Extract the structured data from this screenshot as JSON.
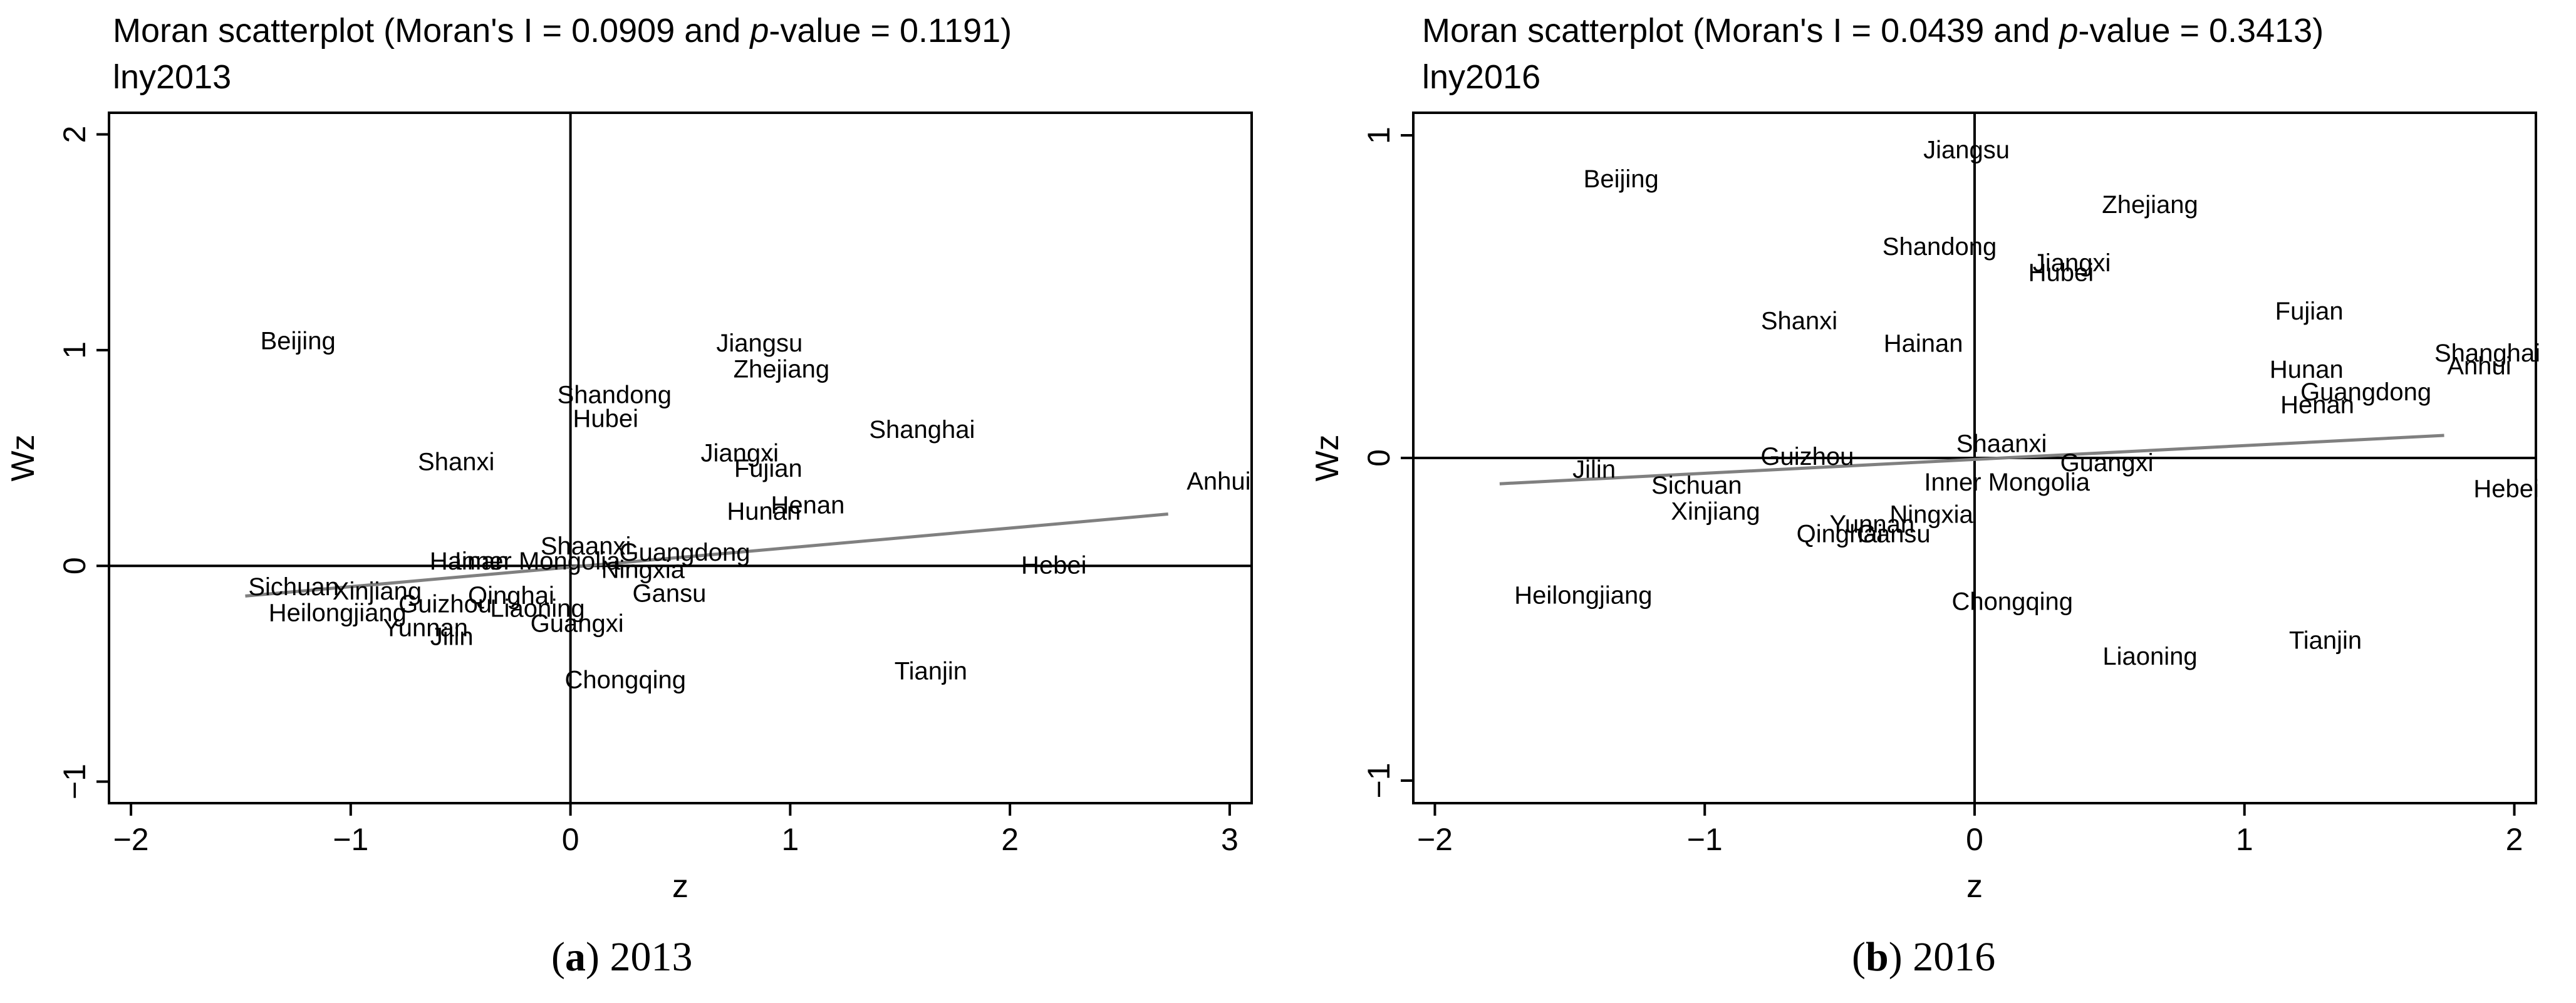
{
  "chart_data": [
    {
      "type": "scatter",
      "title": "Moran scatterplot (Moran's I = 0.0909 and p-value = 0.1191)",
      "title_parts": {
        "before": "Moran scatterplot (Moran's I = 0.0909 and ",
        "italic": "p",
        "after": "-value = 0.1191)"
      },
      "subtitle": "lny2013",
      "xlabel": "z",
      "ylabel": "Wz",
      "xlim": [
        -2.1,
        3.1
      ],
      "ylim": [
        -1.1,
        2.1
      ],
      "xticks": [
        -2,
        -1,
        0,
        1,
        2,
        3
      ],
      "yticks": [
        -1,
        0,
        1,
        2
      ],
      "xtick_labels": [
        "−2",
        "−1",
        "0",
        "1",
        "2",
        "3"
      ],
      "ytick_labels": [
        "−1",
        "0",
        "1",
        "2"
      ],
      "grid": false,
      "fit_line": {
        "x": [
          -1.48,
          2.72
        ],
        "y": [
          -0.14,
          0.24
        ]
      },
      "caption": {
        "letter": "a",
        "text": " 2013"
      },
      "points": [
        {
          "label": "Beijing",
          "x": -1.24,
          "y": 1.05
        },
        {
          "label": "Shanxi",
          "x": -0.52,
          "y": 0.49
        },
        {
          "label": "Jiangsu",
          "x": 0.86,
          "y": 1.04
        },
        {
          "label": "Zhejiang",
          "x": 0.96,
          "y": 0.92
        },
        {
          "label": "Shandong",
          "x": 0.2,
          "y": 0.8
        },
        {
          "label": "Hubei",
          "x": 0.16,
          "y": 0.69
        },
        {
          "label": "Shanghai",
          "x": 1.6,
          "y": 0.64
        },
        {
          "label": "Jiangxi",
          "x": 0.77,
          "y": 0.53
        },
        {
          "label": "Fujian",
          "x": 0.9,
          "y": 0.46
        },
        {
          "label": "Anhui",
          "x": 2.95,
          "y": 0.4
        },
        {
          "label": "Henan",
          "x": 1.08,
          "y": 0.29
        },
        {
          "label": "Hunan",
          "x": 0.88,
          "y": 0.26
        },
        {
          "label": "Shaanxi",
          "x": 0.07,
          "y": 0.1
        },
        {
          "label": "Guangdong",
          "x": 0.52,
          "y": 0.07
        },
        {
          "label": "Hainan",
          "x": -0.46,
          "y": 0.03
        },
        {
          "label": "Inner Mongolia",
          "x": -0.15,
          "y": 0.03
        },
        {
          "label": "Ningxia",
          "x": 0.33,
          "y": -0.01
        },
        {
          "label": "Hebei",
          "x": 2.2,
          "y": 0.01
        },
        {
          "label": "Sichuan",
          "x": -1.26,
          "y": -0.09
        },
        {
          "label": "Xinjiang",
          "x": -0.88,
          "y": -0.11
        },
        {
          "label": "Qinghai",
          "x": -0.27,
          "y": -0.13
        },
        {
          "label": "Gansu",
          "x": 0.45,
          "y": -0.12
        },
        {
          "label": "Guizhou",
          "x": -0.57,
          "y": -0.17
        },
        {
          "label": "Liaoning",
          "x": -0.15,
          "y": -0.19
        },
        {
          "label": "Heilongjiang",
          "x": -1.06,
          "y": -0.21
        },
        {
          "label": "Yunnan",
          "x": -0.66,
          "y": -0.28
        },
        {
          "label": "Guangxi",
          "x": 0.03,
          "y": -0.26
        },
        {
          "label": "Jilin",
          "x": -0.54,
          "y": -0.32
        },
        {
          "label": "Tianjin",
          "x": 1.64,
          "y": -0.48
        },
        {
          "label": "Chongqing",
          "x": 0.25,
          "y": -0.52
        }
      ]
    },
    {
      "type": "scatter",
      "title": "Moran scatterplot (Moran's I = 0.0439 and p-value = 0.3413)",
      "title_parts": {
        "before": "Moran scatterplot (Moran's I = 0.0439 and ",
        "italic": "p",
        "after": "-value = 0.3413)"
      },
      "subtitle": "lny2016",
      "xlabel": "z",
      "ylabel": "Wz",
      "xlim": [
        -2.08,
        2.08
      ],
      "ylim": [
        -1.07,
        1.07
      ],
      "xticks": [
        -2,
        -1,
        0,
        1,
        2
      ],
      "yticks": [
        -1,
        0,
        1
      ],
      "xtick_labels": [
        "−2",
        "−1",
        "0",
        "1",
        "2"
      ],
      "ytick_labels": [
        "−1",
        "0",
        "1"
      ],
      "grid": false,
      "fit_line": {
        "x": [
          -1.76,
          1.74
        ],
        "y": [
          -0.08,
          0.07
        ]
      },
      "caption": {
        "letter": "b",
        "text": " 2016"
      },
      "points": [
        {
          "label": "Jiangsu",
          "x": -0.03,
          "y": 0.96
        },
        {
          "label": "Beijing",
          "x": -1.31,
          "y": 0.87
        },
        {
          "label": "Zhejiang",
          "x": 0.65,
          "y": 0.79
        },
        {
          "label": "Shandong",
          "x": -0.13,
          "y": 0.66
        },
        {
          "label": "Jiangxi",
          "x": 0.36,
          "y": 0.61
        },
        {
          "label": "Hubei",
          "x": 0.32,
          "y": 0.58
        },
        {
          "label": "Fujian",
          "x": 1.24,
          "y": 0.46
        },
        {
          "label": "Shanxi",
          "x": -0.65,
          "y": 0.43
        },
        {
          "label": "Hainan",
          "x": -0.19,
          "y": 0.36
        },
        {
          "label": "Shanghai",
          "x": 1.9,
          "y": 0.33
        },
        {
          "label": "Anhui",
          "x": 1.87,
          "y": 0.29
        },
        {
          "label": "Hunan",
          "x": 1.23,
          "y": 0.28
        },
        {
          "label": "Guangdong",
          "x": 1.45,
          "y": 0.21
        },
        {
          "label": "Henan",
          "x": 1.27,
          "y": 0.17
        },
        {
          "label": "Shaanxi",
          "x": 0.1,
          "y": 0.05
        },
        {
          "label": "Guizhou",
          "x": -0.62,
          "y": 0.01
        },
        {
          "label": "Guangxi",
          "x": 0.49,
          "y": -0.01
        },
        {
          "label": "Jilin",
          "x": -1.41,
          "y": -0.03
        },
        {
          "label": "Inner Mongolia",
          "x": 0.12,
          "y": -0.07
        },
        {
          "label": "Sichuan",
          "x": -1.03,
          "y": -0.08
        },
        {
          "label": "Hebei",
          "x": 1.97,
          "y": -0.09
        },
        {
          "label": "Xinjiang",
          "x": -0.96,
          "y": -0.16
        },
        {
          "label": "Ningxia",
          "x": -0.16,
          "y": -0.17
        },
        {
          "label": "Yunnan",
          "x": -0.38,
          "y": -0.2
        },
        {
          "label": "Qinghai",
          "x": -0.5,
          "y": -0.23
        },
        {
          "label": "Gansu",
          "x": -0.3,
          "y": -0.23
        },
        {
          "label": "Heilongjiang",
          "x": -1.45,
          "y": -0.42
        },
        {
          "label": "Chongqing",
          "x": 0.14,
          "y": -0.44
        },
        {
          "label": "Tianjin",
          "x": 1.3,
          "y": -0.56
        },
        {
          "label": "Liaoning",
          "x": 0.65,
          "y": -0.61
        }
      ]
    }
  ]
}
